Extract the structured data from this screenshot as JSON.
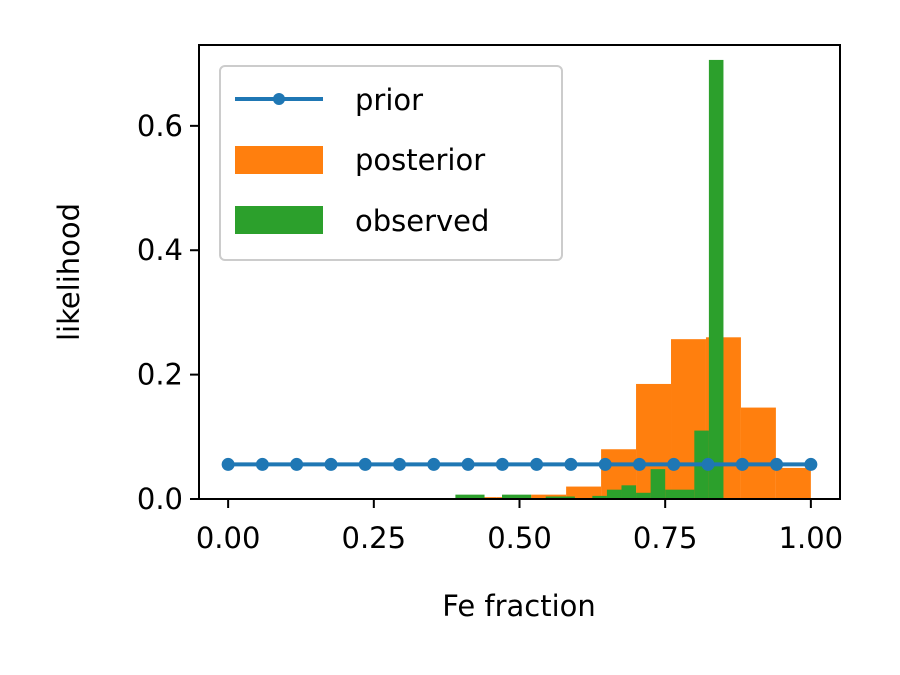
{
  "chart_data": {
    "type": "bar",
    "title": "",
    "xlabel": "Fe fraction",
    "ylabel": "likelihood",
    "xlim": [
      -0.05,
      1.05
    ],
    "ylim": [
      0,
      0.73
    ],
    "xticks": [
      0.0,
      0.25,
      0.5,
      0.75,
      1.0
    ],
    "xtick_labels": [
      "0.00",
      "0.25",
      "0.50",
      "0.75",
      "1.00"
    ],
    "yticks": [
      0.0,
      0.2,
      0.4,
      0.6
    ],
    "ytick_labels": [
      "0.0",
      "0.2",
      "0.4",
      "0.6"
    ],
    "grid": false,
    "legend_position": "top-left",
    "series": [
      {
        "name": "prior",
        "kind": "line",
        "color": "#1f77b4",
        "x": [
          0.0,
          0.0588,
          0.1176,
          0.1765,
          0.2353,
          0.2941,
          0.3529,
          0.4118,
          0.4706,
          0.5294,
          0.5882,
          0.6471,
          0.7059,
          0.7647,
          0.8235,
          0.8824,
          0.9412,
          1.0
        ],
        "y": [
          0.0556,
          0.0556,
          0.0556,
          0.0556,
          0.0556,
          0.0556,
          0.0556,
          0.0556,
          0.0556,
          0.0556,
          0.0556,
          0.0556,
          0.0556,
          0.0556,
          0.0556,
          0.0556,
          0.0556,
          0.0556
        ]
      },
      {
        "name": "posterior",
        "kind": "hist",
        "color": "#ff7f0e",
        "bins": [
          [
            0.4,
            0.46,
            0.003
          ],
          [
            0.46,
            0.52,
            0.003
          ],
          [
            0.52,
            0.58,
            0.007
          ],
          [
            0.58,
            0.64,
            0.02
          ],
          [
            0.64,
            0.7,
            0.08
          ],
          [
            0.7,
            0.76,
            0.185
          ],
          [
            0.76,
            0.82,
            0.257
          ],
          [
            0.82,
            0.88,
            0.26
          ],
          [
            0.88,
            0.94,
            0.147
          ],
          [
            0.94,
            1.0,
            0.05
          ]
        ]
      },
      {
        "name": "observed",
        "kind": "hist",
        "color": "#2ca02c",
        "bins": [
          [
            0.39,
            0.44,
            0.007
          ],
          [
            0.47,
            0.52,
            0.007
          ],
          [
            0.545,
            0.595,
            0.004
          ],
          [
            0.625,
            0.65,
            0.005
          ],
          [
            0.65,
            0.675,
            0.015
          ],
          [
            0.675,
            0.7,
            0.022
          ],
          [
            0.7,
            0.725,
            0.01
          ],
          [
            0.725,
            0.75,
            0.048
          ],
          [
            0.75,
            0.8,
            0.015
          ],
          [
            0.8,
            0.825,
            0.11
          ],
          [
            0.825,
            0.85,
            0.706
          ]
        ]
      }
    ]
  }
}
